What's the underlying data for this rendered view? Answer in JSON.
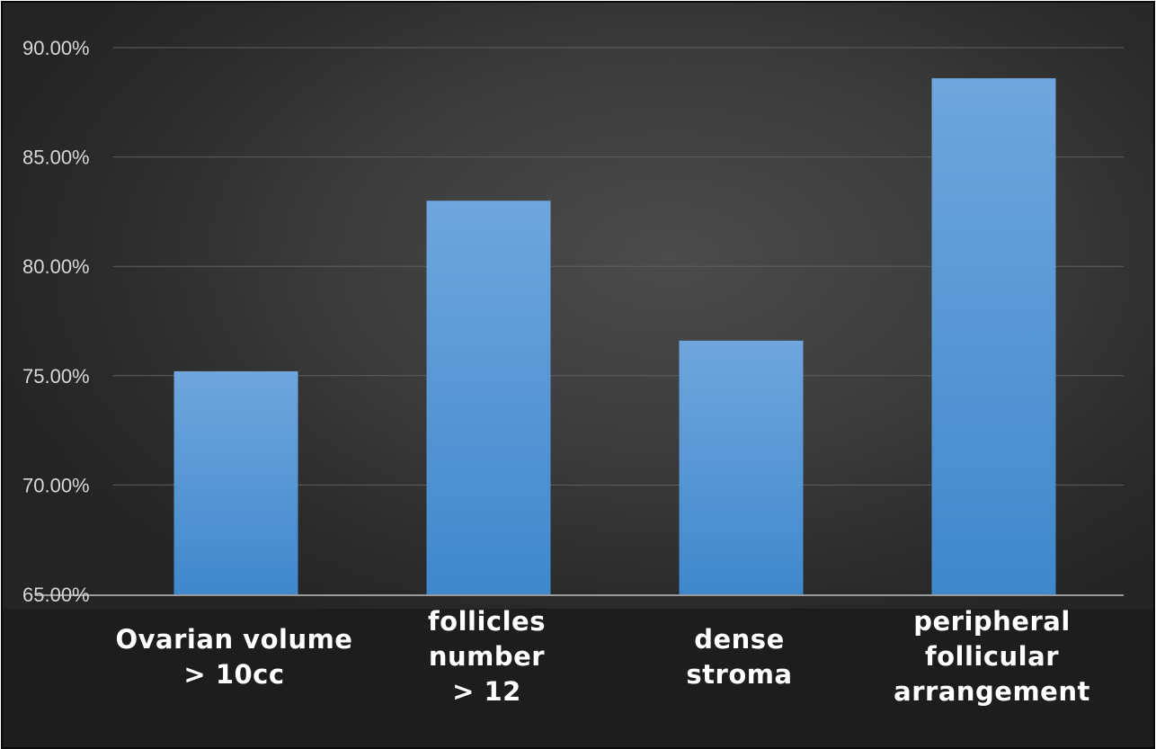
{
  "chart_data": {
    "type": "bar",
    "categories": [
      [
        "Ovarian volume",
        "> 10cc"
      ],
      [
        "follicles",
        "number",
        "> 12"
      ],
      [
        "dense",
        "stroma"
      ],
      [
        "peripheral",
        "follicular",
        "arrangement"
      ]
    ],
    "values": [
      75.2,
      83.0,
      76.6,
      88.6
    ],
    "ylim": [
      65,
      90
    ],
    "yticks": [
      65,
      70,
      75,
      80,
      85,
      90
    ],
    "ytick_labels": [
      "65.00%",
      "70.00%",
      "75.00%",
      "80.00%",
      "85.00%",
      "90.00%"
    ],
    "title": "",
    "xlabel": "",
    "ylabel": "",
    "grid": true,
    "legend": "none",
    "colors": {
      "bar_top": "#6fa6dd",
      "bar_bottom": "#3f88cc",
      "grid": "#5e5e5e",
      "axis": "#9a9a9a",
      "plot_background": "#3a3a3a",
      "label_background": "#1d1d1d"
    }
  }
}
